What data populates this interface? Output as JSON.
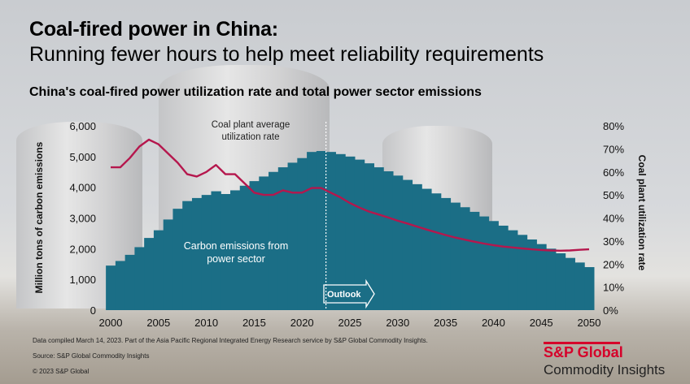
{
  "header": {
    "title": "Coal-fired power in China:",
    "subtitle": "Running fewer hours to help meet reliability requirements",
    "chart_title": "China's coal-fired power utilization rate and total power sector emissions"
  },
  "annotations": {
    "line_label": "Coal plant average utilization rate",
    "area_label": "Carbon emissions from power sector",
    "outlook": "Outlook"
  },
  "footer": {
    "note": "Data compiled March 14, 2023. Part of the Asia Pacific Regional Integrated Energy Research service by S&P Global Commodity Insights.",
    "source": "Source: S&P Global Commodity Insights",
    "copyright": "© 2023 S&P Global"
  },
  "brand": {
    "name": "S&P Global",
    "line2": "Commodity Insights"
  },
  "colors": {
    "area": "#1b6e86",
    "line": "#b5174d",
    "brand_red": "#d6002a"
  },
  "chart_data": {
    "type": "area",
    "xlabel": "",
    "ylabel_left": "Million  tons of carbon emissions",
    "ylabel_right": "Coal plant utilization rate",
    "ylim_left": [
      0,
      6000
    ],
    "ylim_right": [
      0,
      80
    ],
    "x_ticks": [
      "2000",
      "2005",
      "2010",
      "2015",
      "2020",
      "2025",
      "2030",
      "2035",
      "2040",
      "2045",
      "2050"
    ],
    "y_ticks_left": [
      "0",
      "1,000",
      "2,000",
      "3,000",
      "4,000",
      "5,000",
      "6,000"
    ],
    "y_ticks_right": [
      "0%",
      "10%",
      "20%",
      "30%",
      "40%",
      "50%",
      "60%",
      "70%",
      "80%"
    ],
    "outlook_start_year": 2022,
    "series": [
      {
        "name": "Carbon emissions from power sector",
        "axis": "left",
        "x": [
          2000,
          2001,
          2002,
          2003,
          2004,
          2005,
          2006,
          2007,
          2008,
          2009,
          2010,
          2011,
          2012,
          2013,
          2014,
          2015,
          2016,
          2017,
          2018,
          2019,
          2020,
          2021,
          2022,
          2023,
          2024,
          2025,
          2026,
          2027,
          2028,
          2029,
          2030,
          2031,
          2032,
          2033,
          2034,
          2035,
          2036,
          2037,
          2038,
          2039,
          2040,
          2041,
          2042,
          2043,
          2044,
          2045,
          2046,
          2047,
          2048,
          2049,
          2050
        ],
        "values": [
          1450,
          1600,
          1800,
          2050,
          2350,
          2600,
          2950,
          3300,
          3550,
          3650,
          3750,
          3870,
          3780,
          3900,
          4050,
          4200,
          4350,
          4500,
          4650,
          4800,
          4950,
          5150,
          5180,
          5150,
          5080,
          5000,
          4900,
          4780,
          4650,
          4520,
          4380,
          4240,
          4100,
          3950,
          3800,
          3650,
          3500,
          3350,
          3200,
          3050,
          2900,
          2750,
          2600,
          2450,
          2300,
          2150,
          2000,
          1850,
          1700,
          1550,
          1400
        ]
      },
      {
        "name": "Coal plant average utilization rate",
        "axis": "right",
        "x": [
          2000,
          2001,
          2002,
          2003,
          2004,
          2005,
          2006,
          2007,
          2008,
          2009,
          2010,
          2011,
          2012,
          2013,
          2014,
          2015,
          2016,
          2017,
          2018,
          2019,
          2020,
          2021,
          2022,
          2023,
          2024,
          2025,
          2026,
          2027,
          2028,
          2029,
          2030,
          2031,
          2032,
          2033,
          2034,
          2035,
          2036,
          2037,
          2038,
          2039,
          2040,
          2041,
          2042,
          2043,
          2044,
          2045,
          2046,
          2047,
          2048,
          2049,
          2050
        ],
        "values": [
          62,
          62,
          66,
          71,
          74,
          72,
          68,
          64,
          59,
          58,
          60,
          63,
          59,
          59,
          55,
          51,
          50,
          50,
          52,
          51,
          51,
          53,
          53,
          51,
          49,
          46.5,
          44.5,
          42.8,
          41.5,
          40.2,
          38.8,
          37.6,
          36.3,
          35,
          33.8,
          32.6,
          31.5,
          30.6,
          29.7,
          28.9,
          28.2,
          27.6,
          27.2,
          26.8,
          26.4,
          26.1,
          25.9,
          25.8,
          25.9,
          26.2,
          26.4
        ]
      }
    ]
  }
}
